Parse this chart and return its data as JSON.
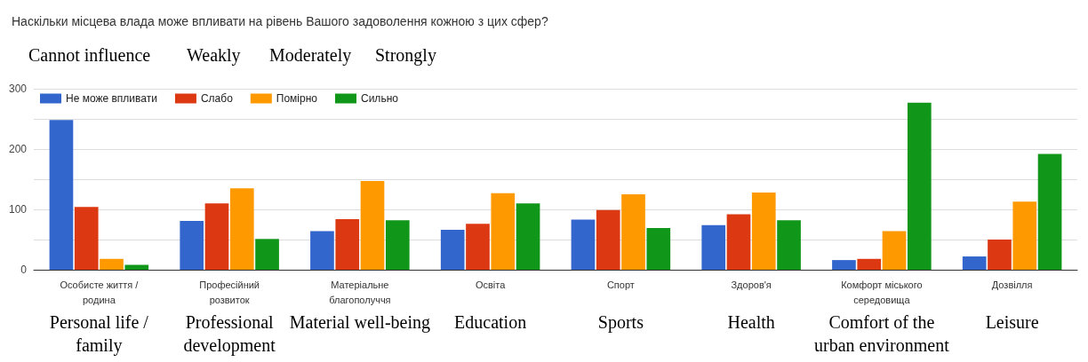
{
  "chart_data": {
    "type": "bar",
    "title": "Наскільки місцева влада може впливати на рівень Вашого задоволення кожною з цих сфер?",
    "categories": [
      "Особисте життя / родина",
      "Професійний розвиток",
      "Матеріальне благополуччя",
      "Освіта",
      "Спорт",
      "Здоров'я",
      "Комфорт міського середовища",
      "Дозвілля"
    ],
    "series": [
      {
        "name": "Не може впливати",
        "color": "#3366cc",
        "values": [
          248,
          81,
          64,
          66,
          83,
          74,
          16,
          22
        ]
      },
      {
        "name": "Слабо",
        "color": "#dc3912",
        "values": [
          104,
          110,
          84,
          76,
          99,
          92,
          18,
          50
        ]
      },
      {
        "name": "Помірно",
        "color": "#ff9900",
        "values": [
          18,
          135,
          147,
          127,
          125,
          128,
          64,
          113
        ]
      },
      {
        "name": "Сильно",
        "color": "#109618",
        "values": [
          8,
          51,
          82,
          110,
          69,
          82,
          277,
          192
        ]
      }
    ],
    "ylim": [
      0,
      300
    ],
    "yticks": [
      0,
      {
        "value": 50,
        "label": null
      },
      100,
      {
        "value": 150,
        "label": null
      },
      200,
      {
        "value": 250,
        "label": null
      },
      300
    ],
    "grid": "y",
    "legend": "top left",
    "annotations": [
      "Cannot influence",
      "Weakly",
      "Moderately",
      "Strongly",
      "Personal life / family",
      "Professional development",
      "Material well-being",
      "Education",
      "Sports",
      "Health",
      "Comfort of the urban environment",
      "Leisure"
    ]
  }
}
